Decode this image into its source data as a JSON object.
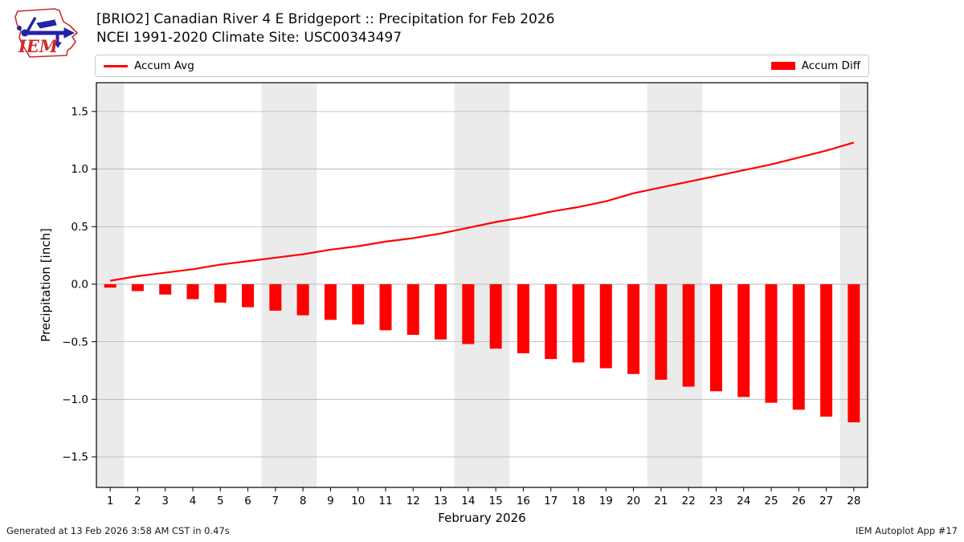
{
  "header": {
    "title_line1": "[BRIO2] Canadian River 4 E Bridgeport :: Precipitation for Feb 2026",
    "title_line2": "NCEI 1991-2020 Climate Site: USC00343497",
    "logo_text": "IEM"
  },
  "legend": {
    "avg_label": "Accum Avg",
    "diff_label": "Accum Diff"
  },
  "footer": {
    "left": "Generated at 13 Feb 2026 3:58 AM CST in 0.47s",
    "right": "IEM Autoplot App #17"
  },
  "colors": {
    "accent_red": "#ff0000",
    "weekend_band": "#ebebeb",
    "gridline": "#b3b3b3",
    "axis": "#000000",
    "legend_border": "#cccccc",
    "logo_red": "#cf2a2a",
    "logo_blue": "#2222aa"
  },
  "chart_data": {
    "type": "mixed",
    "title": "[BRIO2] Canadian River 4 E Bridgeport :: Precipitation for Feb 2026",
    "subtitle": "NCEI 1991-2020 Climate Site: USC00343497",
    "xlabel": "February 2026",
    "ylabel": "Precipitation [inch]",
    "x": [
      1,
      2,
      3,
      4,
      5,
      6,
      7,
      8,
      9,
      10,
      11,
      12,
      13,
      14,
      15,
      16,
      17,
      18,
      19,
      20,
      21,
      22,
      23,
      24,
      25,
      26,
      27,
      28
    ],
    "series": [
      {
        "name": "Accum Avg",
        "type": "line",
        "values": [
          0.03,
          0.07,
          0.1,
          0.13,
          0.17,
          0.2,
          0.23,
          0.26,
          0.3,
          0.33,
          0.37,
          0.4,
          0.44,
          0.49,
          0.54,
          0.58,
          0.63,
          0.67,
          0.72,
          0.79,
          0.84,
          0.89,
          0.94,
          0.99,
          1.04,
          1.1,
          1.16,
          1.23
        ]
      },
      {
        "name": "Accum Diff",
        "type": "bar",
        "values": [
          -0.03,
          -0.06,
          -0.09,
          -0.13,
          -0.16,
          -0.2,
          -0.23,
          -0.27,
          -0.31,
          -0.35,
          -0.4,
          -0.44,
          -0.48,
          -0.52,
          -0.56,
          -0.6,
          -0.65,
          -0.68,
          -0.73,
          -0.78,
          -0.83,
          -0.89,
          -0.93,
          -0.98,
          -1.03,
          -1.09,
          -1.15,
          -1.2
        ]
      }
    ],
    "yticks": [
      -1.5,
      -1.0,
      -0.5,
      0.0,
      0.5,
      1.0,
      1.5
    ],
    "ylim": [
      -1.765,
      1.75
    ],
    "xlim": [
      0.5,
      28.5
    ],
    "grid": true,
    "legend_position": "top",
    "weekend_bands": [
      [
        0.5,
        1.5
      ],
      [
        6.5,
        8.5
      ],
      [
        13.5,
        15.5
      ],
      [
        20.5,
        22.5
      ],
      [
        27.5,
        28.5
      ]
    ]
  }
}
